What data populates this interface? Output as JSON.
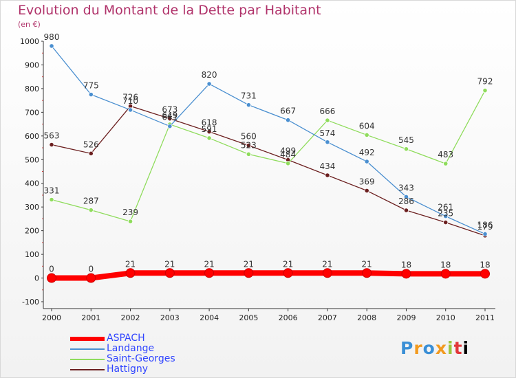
{
  "chart_data": {
    "type": "line",
    "title": "Evolution du Montant de la Dette par Habitant",
    "subtitle": "(en €)",
    "x": [
      "2000",
      "2001",
      "2002",
      "2003",
      "2004",
      "2005",
      "2006",
      "2007",
      "2008",
      "2009",
      "2010",
      "2011"
    ],
    "yticks": [
      "-100",
      "0",
      "100",
      "200",
      "300",
      "400",
      "500",
      "600",
      "700",
      "800",
      "900",
      "1000"
    ],
    "ylim": [
      -100,
      1000
    ],
    "grid": false,
    "legend_position": "bottom-left",
    "series": [
      {
        "name": "ASPACH",
        "color": "#ff0000",
        "values": [
          0,
          0,
          21,
          21,
          21,
          21,
          21,
          21,
          21,
          18,
          18,
          18
        ],
        "labels": [
          "0",
          "0",
          "21",
          "21",
          "21",
          "21",
          "21",
          "21",
          "21",
          "18",
          "18",
          "18"
        ]
      },
      {
        "name": "Landange",
        "color": "#4a8fd0",
        "values": [
          980,
          775,
          710,
          641,
          820,
          731,
          667,
          574,
          492,
          343,
          261,
          186
        ],
        "labels": [
          "980",
          "775",
          "710",
          "641",
          "820",
          "731",
          "667",
          "574",
          "492",
          "343",
          "261",
          "186"
        ]
      },
      {
        "name": "Saint-Georges",
        "color": "#8fdc5c",
        "values": [
          331,
          287,
          239,
          649,
          591,
          523,
          484,
          666,
          604,
          545,
          483,
          792
        ],
        "labels": [
          "331",
          "287",
          "239",
          "649",
          "591",
          "523",
          "484",
          "666",
          "604",
          "545",
          "483",
          "792"
        ]
      },
      {
        "name": "Hattigny",
        "color": "#6b1f1f",
        "values": [
          563,
          526,
          726,
          673,
          618,
          560,
          499,
          434,
          369,
          286,
          235,
          179
        ],
        "labels": [
          "563",
          "526",
          "726",
          "673",
          "618",
          "560",
          "499",
          "434",
          "369",
          "286",
          "235",
          "179"
        ]
      }
    ]
  },
  "logo": {
    "letters": [
      "P",
      "r",
      "o",
      "x",
      "i",
      "t",
      "i"
    ]
  }
}
